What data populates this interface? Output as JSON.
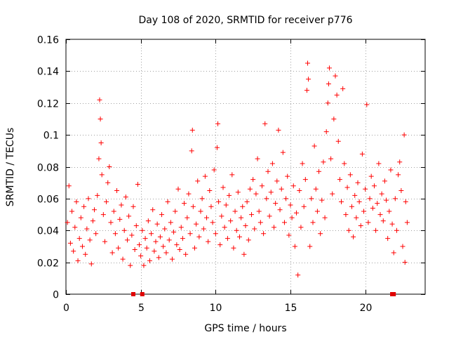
{
  "chart_data": {
    "type": "scatter",
    "title": "Day 108 of 2020, SRMTID for receiver p776",
    "xlabel": "GPS time / hours",
    "ylabel": "SRMTID / TECUs",
    "xlim": [
      0,
      24
    ],
    "ylim": [
      0,
      0.16
    ],
    "xticks": [
      0,
      5,
      10,
      15,
      20
    ],
    "xtick_labels": [
      "0",
      "5",
      "10",
      "15",
      "20"
    ],
    "yticks": [
      0,
      0.02,
      0.04,
      0.06,
      0.08,
      0.1,
      0.12,
      0.14,
      0.16
    ],
    "ytick_labels": [
      "0",
      "0.02",
      "0.04",
      "0.06",
      "0.08",
      "0.1",
      "0.12",
      "0.14",
      "0.16"
    ],
    "grid": true,
    "legend": "none",
    "colors": {
      "points": "#ff0000",
      "flags": "#e00000",
      "axis": "#000000",
      "grid": "#a0a0a0"
    },
    "series": [
      {
        "name": "SRMTID",
        "marker": "plus",
        "points": [
          [
            0.1,
            0.045
          ],
          [
            0.2,
            0.068
          ],
          [
            0.3,
            0.032
          ],
          [
            0.4,
            0.052
          ],
          [
            0.5,
            0.027
          ],
          [
            0.6,
            0.042
          ],
          [
            0.7,
            0.058
          ],
          [
            0.8,
            0.021
          ],
          [
            0.9,
            0.035
          ],
          [
            1.0,
            0.048
          ],
          [
            1.1,
            0.03
          ],
          [
            1.2,
            0.055
          ],
          [
            1.3,
            0.025
          ],
          [
            1.4,
            0.041
          ],
          [
            1.5,
            0.06
          ],
          [
            1.6,
            0.034
          ],
          [
            1.7,
            0.019
          ],
          [
            1.8,
            0.046
          ],
          [
            1.9,
            0.053
          ],
          [
            2.0,
            0.038
          ],
          [
            2.1,
            0.062
          ],
          [
            2.2,
            0.085
          ],
          [
            2.25,
            0.122
          ],
          [
            2.3,
            0.11
          ],
          [
            2.35,
            0.095
          ],
          [
            2.4,
            0.075
          ],
          [
            2.5,
            0.05
          ],
          [
            2.6,
            0.033
          ],
          [
            2.7,
            0.058
          ],
          [
            2.8,
            0.07
          ],
          [
            2.9,
            0.08
          ],
          [
            3.0,
            0.045
          ],
          [
            3.1,
            0.026
          ],
          [
            3.2,
            0.052
          ],
          [
            3.3,
            0.038
          ],
          [
            3.4,
            0.065
          ],
          [
            3.5,
            0.029
          ],
          [
            3.6,
            0.047
          ],
          [
            3.7,
            0.056
          ],
          [
            3.8,
            0.022
          ],
          [
            3.9,
            0.04
          ],
          [
            4.0,
            0.061
          ],
          [
            4.1,
            0.034
          ],
          [
            4.2,
            0.049
          ],
          [
            4.3,
            0.018
          ],
          [
            4.4,
            0.037
          ],
          [
            4.5,
            0.055
          ],
          [
            4.6,
            0.028
          ],
          [
            4.7,
            0.043
          ],
          [
            4.8,
            0.069
          ],
          [
            4.9,
            0.031
          ],
          [
            5.0,
            0.024
          ],
          [
            5.1,
            0.04
          ],
          [
            5.2,
            0.018
          ],
          [
            5.3,
            0.035
          ],
          [
            5.4,
            0.029
          ],
          [
            5.5,
            0.046
          ],
          [
            5.6,
            0.021
          ],
          [
            5.7,
            0.038
          ],
          [
            5.8,
            0.053
          ],
          [
            5.9,
            0.027
          ],
          [
            6.0,
            0.033
          ],
          [
            6.1,
            0.044
          ],
          [
            6.2,
            0.023
          ],
          [
            6.3,
            0.036
          ],
          [
            6.4,
            0.05
          ],
          [
            6.5,
            0.03
          ],
          [
            6.6,
            0.041
          ],
          [
            6.7,
            0.026
          ],
          [
            6.8,
            0.058
          ],
          [
            6.9,
            0.034
          ],
          [
            7.0,
            0.045
          ],
          [
            7.1,
            0.022
          ],
          [
            7.2,
            0.039
          ],
          [
            7.3,
            0.052
          ],
          [
            7.4,
            0.031
          ],
          [
            7.5,
            0.066
          ],
          [
            7.6,
            0.028
          ],
          [
            7.7,
            0.042
          ],
          [
            7.8,
            0.035
          ],
          [
            7.9,
            0.057
          ],
          [
            8.0,
            0.025
          ],
          [
            8.1,
            0.048
          ],
          [
            8.2,
            0.063
          ],
          [
            8.3,
            0.038
          ],
          [
            8.4,
            0.09
          ],
          [
            8.45,
            0.103
          ],
          [
            8.5,
            0.055
          ],
          [
            8.6,
            0.029
          ],
          [
            8.7,
            0.044
          ],
          [
            8.8,
            0.071
          ],
          [
            8.9,
            0.036
          ],
          [
            9.0,
            0.052
          ],
          [
            9.1,
            0.06
          ],
          [
            9.2,
            0.041
          ],
          [
            9.3,
            0.074
          ],
          [
            9.4,
            0.048
          ],
          [
            9.5,
            0.033
          ],
          [
            9.6,
            0.065
          ],
          [
            9.7,
            0.055
          ],
          [
            9.8,
            0.045
          ],
          [
            9.9,
            0.078
          ],
          [
            10.0,
            0.038
          ],
          [
            10.1,
            0.092
          ],
          [
            10.15,
            0.107
          ],
          [
            10.2,
            0.058
          ],
          [
            10.3,
            0.031
          ],
          [
            10.4,
            0.049
          ],
          [
            10.5,
            0.067
          ],
          [
            10.6,
            0.042
          ],
          [
            10.7,
            0.056
          ],
          [
            10.8,
            0.035
          ],
          [
            10.9,
            0.062
          ],
          [
            11.0,
            0.046
          ],
          [
            11.1,
            0.075
          ],
          [
            11.2,
            0.029
          ],
          [
            11.3,
            0.052
          ],
          [
            11.4,
            0.04
          ],
          [
            11.5,
            0.064
          ],
          [
            11.6,
            0.036
          ],
          [
            11.7,
            0.048
          ],
          [
            11.8,
            0.055
          ],
          [
            11.9,
            0.025
          ],
          [
            12.0,
            0.043
          ],
          [
            12.1,
            0.058
          ],
          [
            12.2,
            0.034
          ],
          [
            12.3,
            0.066
          ],
          [
            12.4,
            0.05
          ],
          [
            12.5,
            0.072
          ],
          [
            12.6,
            0.041
          ],
          [
            12.7,
            0.063
          ],
          [
            12.8,
            0.085
          ],
          [
            12.9,
            0.052
          ],
          [
            13.0,
            0.045
          ],
          [
            13.1,
            0.068
          ],
          [
            13.2,
            0.038
          ],
          [
            13.3,
            0.107
          ],
          [
            13.4,
            0.06
          ],
          [
            13.5,
            0.077
          ],
          [
            13.6,
            0.049
          ],
          [
            13.7,
            0.064
          ],
          [
            13.8,
            0.082
          ],
          [
            13.9,
            0.042
          ],
          [
            14.0,
            0.057
          ],
          [
            14.1,
            0.071
          ],
          [
            14.2,
            0.103
          ],
          [
            14.3,
            0.053
          ],
          [
            14.4,
            0.066
          ],
          [
            14.5,
            0.089
          ],
          [
            14.6,
            0.045
          ],
          [
            14.7,
            0.06
          ],
          [
            14.8,
            0.074
          ],
          [
            14.9,
            0.037
          ],
          [
            15.0,
            0.056
          ],
          [
            15.1,
            0.048
          ],
          [
            15.2,
            0.068
          ],
          [
            15.3,
            0.03
          ],
          [
            15.4,
            0.051
          ],
          [
            15.5,
            0.012
          ],
          [
            15.6,
            0.065
          ],
          [
            15.7,
            0.042
          ],
          [
            15.8,
            0.082
          ],
          [
            15.9,
            0.055
          ],
          [
            16.0,
            0.072
          ],
          [
            16.1,
            0.128
          ],
          [
            16.15,
            0.145
          ],
          [
            16.2,
            0.135
          ],
          [
            16.3,
            0.03
          ],
          [
            16.4,
            0.06
          ],
          [
            16.5,
            0.045
          ],
          [
            16.6,
            0.093
          ],
          [
            16.7,
            0.066
          ],
          [
            16.8,
            0.052
          ],
          [
            16.9,
            0.077
          ],
          [
            17.0,
            0.038
          ],
          [
            17.1,
            0.059
          ],
          [
            17.2,
            0.083
          ],
          [
            17.3,
            0.048
          ],
          [
            17.4,
            0.102
          ],
          [
            17.5,
            0.12
          ],
          [
            17.55,
            0.132
          ],
          [
            17.6,
            0.142
          ],
          [
            17.7,
            0.085
          ],
          [
            17.8,
            0.063
          ],
          [
            17.9,
            0.11
          ],
          [
            18.0,
            0.137
          ],
          [
            18.1,
            0.125
          ],
          [
            18.2,
            0.096
          ],
          [
            18.3,
            0.072
          ],
          [
            18.4,
            0.058
          ],
          [
            18.5,
            0.129
          ],
          [
            18.6,
            0.082
          ],
          [
            18.7,
            0.05
          ],
          [
            18.8,
            0.067
          ],
          [
            18.9,
            0.04
          ],
          [
            19.0,
            0.075
          ],
          [
            19.1,
            0.055
          ],
          [
            19.2,
            0.036
          ],
          [
            19.3,
            0.062
          ],
          [
            19.4,
            0.048
          ],
          [
            19.5,
            0.07
          ],
          [
            19.6,
            0.058
          ],
          [
            19.7,
            0.043
          ],
          [
            19.8,
            0.088
          ],
          [
            19.9,
            0.052
          ],
          [
            20.0,
            0.066
          ],
          [
            20.1,
            0.119
          ],
          [
            20.2,
            0.045
          ],
          [
            20.3,
            0.06
          ],
          [
            20.4,
            0.074
          ],
          [
            20.5,
            0.054
          ],
          [
            20.6,
            0.068
          ],
          [
            20.7,
            0.04
          ],
          [
            20.8,
            0.057
          ],
          [
            20.9,
            0.082
          ],
          [
            21.0,
            0.05
          ],
          [
            21.1,
            0.063
          ],
          [
            21.2,
            0.046
          ],
          [
            21.3,
            0.071
          ],
          [
            21.4,
            0.059
          ],
          [
            21.5,
            0.035
          ],
          [
            21.6,
            0.052
          ],
          [
            21.7,
            0.078
          ],
          [
            21.8,
            0.044
          ],
          [
            21.9,
            0.026
          ],
          [
            22.0,
            0.06
          ],
          [
            22.1,
            0.04
          ],
          [
            22.2,
            0.075
          ],
          [
            22.3,
            0.083
          ],
          [
            22.4,
            0.065
          ],
          [
            22.5,
            0.03
          ],
          [
            22.6,
            0.1
          ],
          [
            22.65,
            0.02
          ],
          [
            22.7,
            0.058
          ],
          [
            22.8,
            0.045
          ]
        ]
      },
      {
        "name": "flags",
        "marker": "square",
        "points": [
          [
            4.5,
            0
          ],
          [
            5.1,
            0
          ],
          [
            21.8,
            0
          ],
          [
            21.9,
            0
          ]
        ]
      }
    ]
  }
}
